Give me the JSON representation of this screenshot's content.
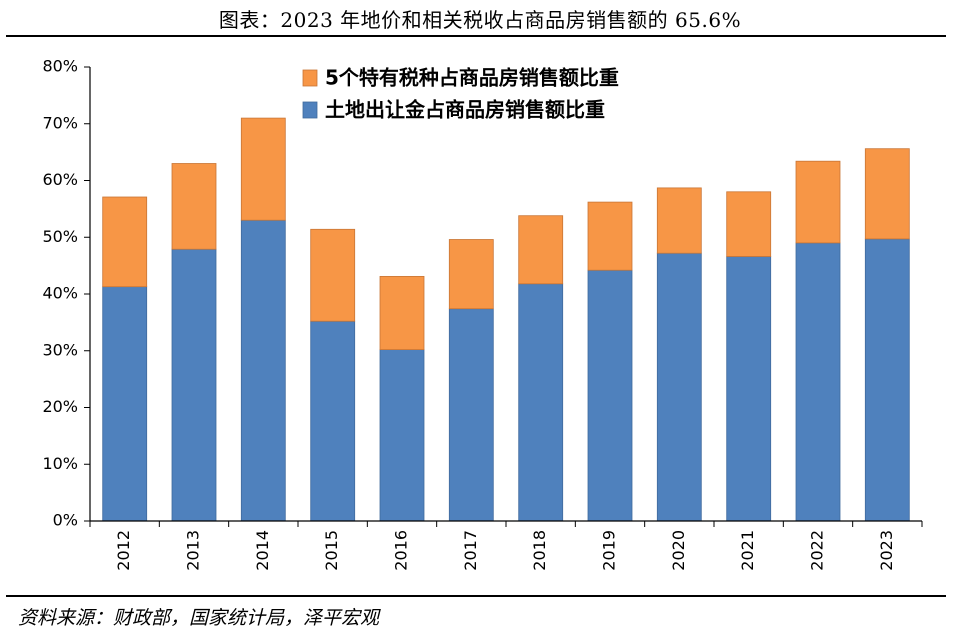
{
  "header": {
    "title": "图表：2023 年地价和相关税收占商品房销售额的 65.6%"
  },
  "footer": {
    "source": "资料来源：财政部，国家统计局，泽平宏观"
  },
  "colors": {
    "land": "#4F81BD",
    "tax": "#F79646"
  },
  "chart_data": {
    "type": "bar",
    "stacked": true,
    "categories": [
      "2012",
      "2013",
      "2014",
      "2015",
      "2016",
      "2017",
      "2018",
      "2019",
      "2020",
      "2021",
      "2022",
      "2023"
    ],
    "series": [
      {
        "name": "土地出让金占商品房销售额比重",
        "values": [
          0.413,
          0.479,
          0.53,
          0.352,
          0.302,
          0.374,
          0.418,
          0.442,
          0.472,
          0.466,
          0.49,
          0.497
        ]
      },
      {
        "name": "5个特有税种占商品房销售额比重",
        "values": [
          0.158,
          0.151,
          0.18,
          0.162,
          0.129,
          0.122,
          0.12,
          0.12,
          0.115,
          0.114,
          0.144,
          0.159
        ]
      }
    ],
    "yaxis": {
      "ticks": [
        "0%",
        "10%",
        "20%",
        "30%",
        "40%",
        "50%",
        "60%",
        "70%",
        "80%"
      ],
      "ylim": [
        0,
        0.8
      ]
    },
    "legend": {
      "placement": "top-center"
    },
    "grid": false
  }
}
